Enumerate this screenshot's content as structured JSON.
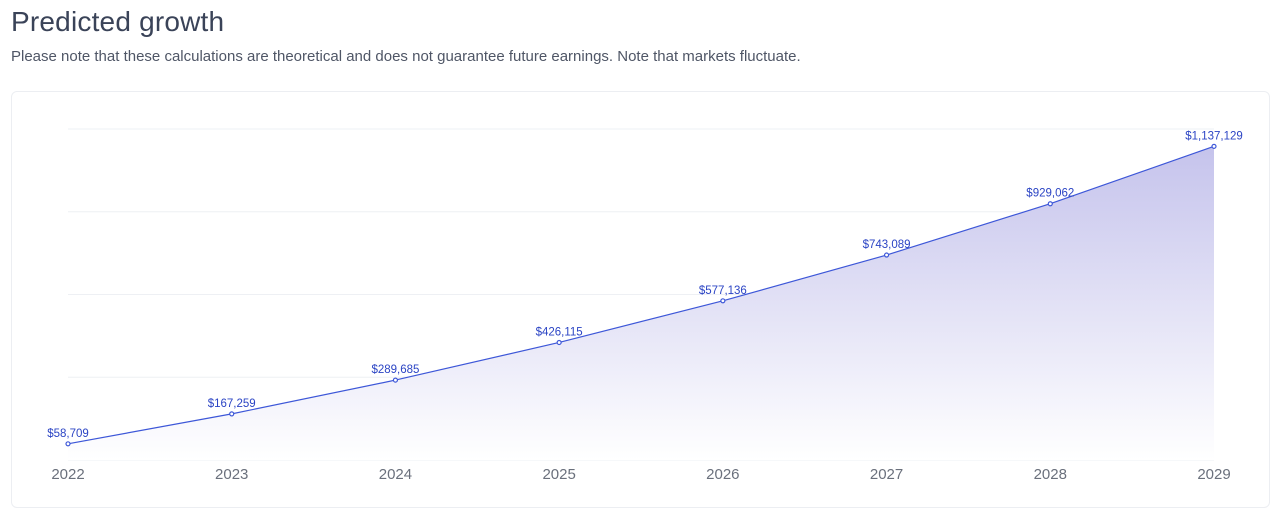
{
  "header": {
    "title": "Predicted growth",
    "subtitle": "Please note that these calculations are theoretical and does not guarantee future earnings. Note that markets fluctuate."
  },
  "colors": {
    "line": "#3d57d8",
    "label": "#2b44c4",
    "area_top": "#c5c3ec",
    "area_bottom": "#ffffff",
    "grid": "#eef0f4"
  },
  "chart_data": {
    "type": "area",
    "title": "",
    "xlabel": "",
    "ylabel": "",
    "x": [
      "2022",
      "2023",
      "2024",
      "2025",
      "2026",
      "2027",
      "2028",
      "2029"
    ],
    "series": [
      {
        "values": [
          58709,
          167259,
          289685,
          426115,
          577136,
          743089,
          929062,
          1137129
        ],
        "labels": [
          "$58,709",
          "$167,259",
          "$289,685",
          "$426,115",
          "$577,136",
          "$743,089",
          "$929,062",
          "$1,137,129"
        ]
      }
    ],
    "ylim": [
      0,
      1200000
    ],
    "grid": true,
    "legend": "none"
  }
}
